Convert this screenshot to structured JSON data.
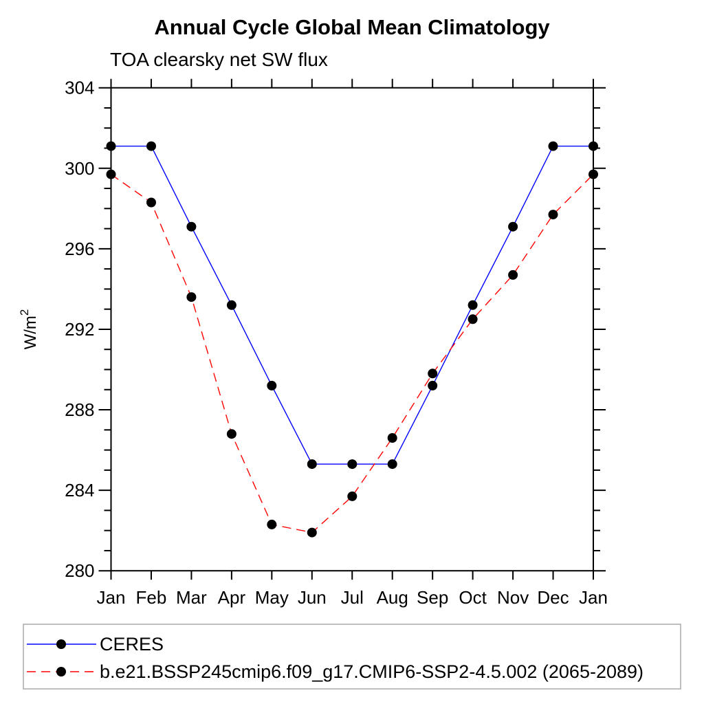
{
  "chart_data": {
    "type": "line",
    "title": "Annual Cycle Global Mean Climatology",
    "subtitle": "TOA clearsky net SW flux",
    "ylabel": "W/m",
    "ylabel_sup": "2",
    "xlabel": "",
    "x_categories": [
      "Jan",
      "Feb",
      "Mar",
      "Apr",
      "May",
      "Jun",
      "Jul",
      "Aug",
      "Sep",
      "Oct",
      "Nov",
      "Dec",
      "Jan"
    ],
    "y_axis": {
      "min": 280,
      "max": 304,
      "major_step": 4,
      "minor_step": 1,
      "major_tick_labels": [
        "280",
        "284",
        "288",
        "292",
        "296",
        "300",
        "304"
      ]
    },
    "grid": false,
    "legend_position": "bottom-left-box",
    "series": [
      {
        "name": "CERES",
        "color": "#0000ff",
        "line_style": "solid",
        "marker": "circle",
        "marker_color": "#000000",
        "values": [
          301.1,
          301.1,
          297.1,
          293.2,
          289.2,
          285.3,
          285.3,
          285.3,
          289.2,
          293.2,
          297.1,
          301.1,
          301.1
        ]
      },
      {
        "name": "b.e21.BSSP245cmip6.f09_g17.CMIP6-SSP2-4.5.002 (2065-2089)",
        "color": "#ff0000",
        "line_style": "dashed",
        "marker": "circle",
        "marker_color": "#000000",
        "values": [
          299.7,
          298.3,
          293.6,
          286.8,
          282.3,
          281.9,
          283.7,
          286.6,
          289.8,
          292.5,
          294.7,
          297.7,
          299.7
        ]
      }
    ]
  },
  "legend": {
    "border_color": "#aaaaaa"
  }
}
